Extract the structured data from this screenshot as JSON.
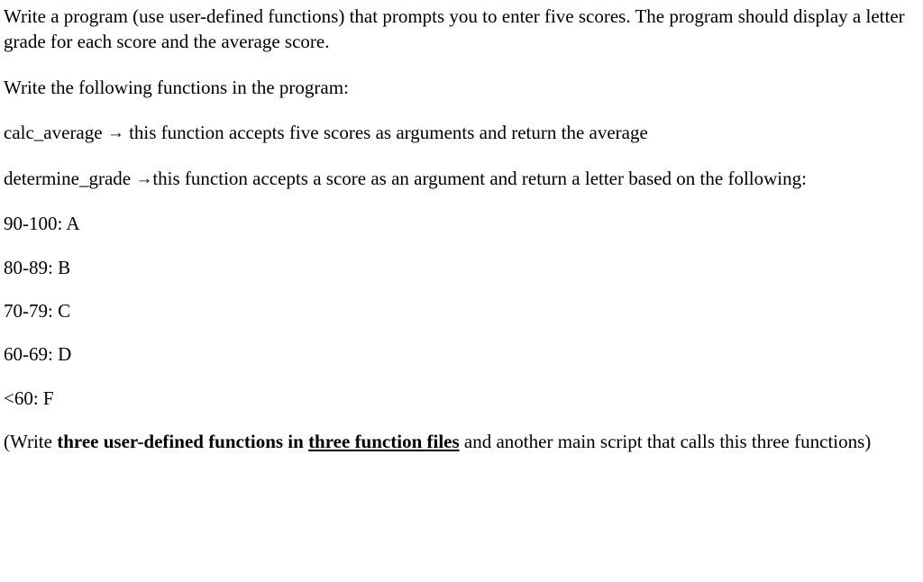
{
  "intro": "Write a program (use user-defined functions) that prompts you to enter five scores. The program should display a letter grade for each score and the average score.",
  "writeFollowing": "Write the following functions in the program:",
  "calcAverage": {
    "name": "calc_average",
    "arrow": "→",
    "desc": "this function accepts five scores as arguments and return the average"
  },
  "determineGrade": {
    "name": "determine_grade",
    "arrow": "→",
    "desc": "this function accepts a score as an argument and return a letter based on the following:"
  },
  "grades": [
    "90-100: A",
    "80-89: B",
    "70-79: C",
    "60-69: D",
    "<60: F"
  ],
  "footer": {
    "open": "(Write ",
    "boldPart1": "three user-defined functions in ",
    "boldUnderlinePart": "three function files",
    "afterBold": " and another main script that calls this three functions)"
  }
}
